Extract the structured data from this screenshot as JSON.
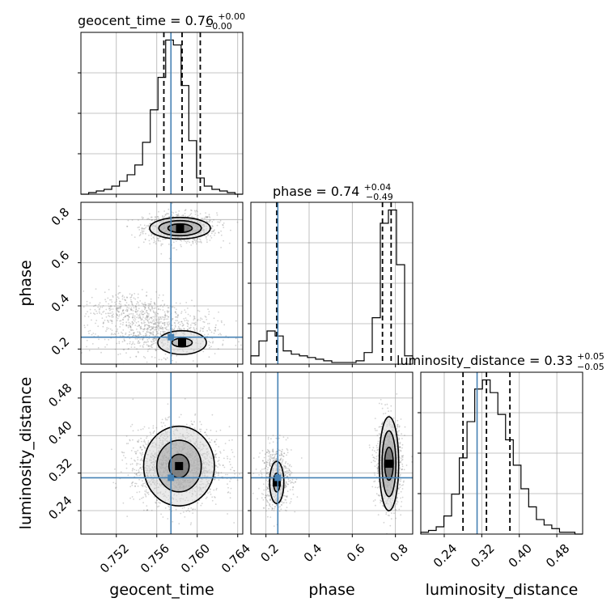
{
  "colors": {
    "truth": "#4682b4",
    "grid": "#b0b0b0",
    "hist": "#000000",
    "points": "#808080"
  },
  "titles": [
    {
      "text": "geocent_time = 0.76",
      "plus": "+0.00",
      "minus": "−0.00"
    },
    {
      "text": "phase = 0.74",
      "plus": "+0.04",
      "minus": "−0.49"
    },
    {
      "text": "luminosity_distance = 0.33",
      "plus": "+0.05",
      "minus": "−0.05"
    }
  ],
  "axis_labels": {
    "geocent_time": "geocent_time",
    "phase": "phase",
    "luminosity_distance": "luminosity_distance"
  },
  "chart_data": {
    "type": "corner",
    "parameters": [
      "geocent_time",
      "phase",
      "luminosity_distance"
    ],
    "ranges": {
      "geocent_time": [
        0.7485,
        0.7645
      ],
      "phase": [
        0.13,
        0.88
      ],
      "luminosity_distance": [
        0.19,
        0.535
      ]
    },
    "ticks": {
      "geocent_time": {
        "values": [
          0.752,
          0.756,
          0.76,
          0.764
        ],
        "labels": [
          "0.752",
          "0.756",
          "0.760",
          "0.764"
        ]
      },
      "phase": {
        "values": [
          0.2,
          0.4,
          0.6,
          0.8
        ],
        "labels": [
          "0.2",
          "0.4",
          "0.6",
          "0.8"
        ]
      },
      "luminosity_distance": {
        "values": [
          0.24,
          0.32,
          0.4,
          0.48
        ],
        "labels": [
          "0.24",
          "0.32",
          "0.40",
          "0.48"
        ]
      }
    },
    "truths": {
      "geocent_time": 0.7574,
      "phase": 0.255,
      "luminosity_distance": 0.31
    },
    "quantiles": {
      "geocent_time": [
        0.7567,
        0.7585,
        0.7603
      ],
      "phase": [
        0.25,
        0.74,
        0.78
      ],
      "luminosity_distance": [
        0.28,
        0.33,
        0.38
      ]
    },
    "histograms": {
      "geocent_time": [
        0,
        1,
        2,
        3,
        5,
        8,
        12,
        18,
        32,
        52,
        72,
        95,
        92,
        67,
        33,
        10,
        5,
        3,
        2,
        1,
        0
      ],
      "phase": [
        5,
        14,
        20,
        17,
        8,
        6,
        5,
        4,
        3,
        2,
        1,
        1,
        1,
        2,
        7,
        28,
        85,
        93,
        60,
        5
      ],
      "luminosity_distance": [
        1,
        2,
        4,
        10,
        22,
        42,
        62,
        80,
        85,
        78,
        66,
        52,
        38,
        25,
        15,
        8,
        5,
        3,
        1,
        1,
        0
      ]
    },
    "grid": true
  }
}
